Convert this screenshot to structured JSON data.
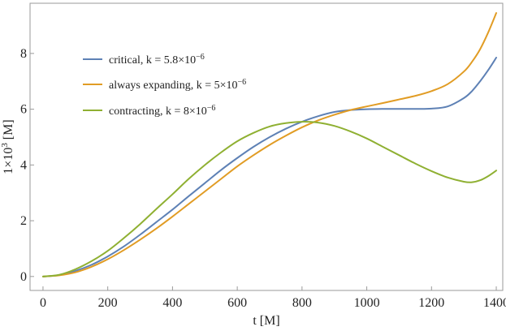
{
  "chart_data": {
    "type": "line",
    "title": "",
    "xlabel": "t [M]",
    "ylabel_parts": [
      "1×10",
      "3",
      " [M]"
    ],
    "xlim": [
      -40,
      1420
    ],
    "ylim": [
      -0.5,
      9.8
    ],
    "xticks": [
      0,
      200,
      400,
      600,
      800,
      1000,
      1200,
      1400
    ],
    "yticks": [
      0,
      2,
      4,
      6,
      8
    ],
    "grid": false,
    "legend_position": "top-left",
    "series": [
      {
        "name_parts": [
          "critical, k = 5.8×10",
          "−6"
        ],
        "color": "#5e81b5",
        "x": [
          0,
          50,
          100,
          150,
          200,
          250,
          300,
          350,
          400,
          450,
          500,
          550,
          600,
          650,
          700,
          750,
          800,
          850,
          900,
          950,
          1000,
          1050,
          1100,
          1150,
          1200,
          1250,
          1300,
          1325,
          1350,
          1375,
          1400
        ],
        "y": [
          0,
          0.05,
          0.2,
          0.42,
          0.72,
          1.08,
          1.5,
          1.95,
          2.4,
          2.88,
          3.35,
          3.82,
          4.25,
          4.65,
          5.0,
          5.3,
          5.55,
          5.75,
          5.9,
          5.97,
          6.0,
          6.01,
          6.01,
          6.01,
          6.02,
          6.1,
          6.4,
          6.65,
          7.0,
          7.4,
          7.85
        ]
      },
      {
        "name_parts": [
          "always expanding, k = 5×10",
          "−6"
        ],
        "color": "#e19c24",
        "x": [
          0,
          50,
          100,
          150,
          200,
          250,
          300,
          350,
          400,
          450,
          500,
          550,
          600,
          650,
          700,
          750,
          800,
          850,
          900,
          950,
          1000,
          1050,
          1100,
          1150,
          1200,
          1250,
          1300,
          1325,
          1350,
          1375,
          1400
        ],
        "y": [
          0,
          0.04,
          0.15,
          0.35,
          0.62,
          0.95,
          1.32,
          1.72,
          2.15,
          2.6,
          3.05,
          3.5,
          3.95,
          4.35,
          4.72,
          5.05,
          5.35,
          5.6,
          5.8,
          5.97,
          6.1,
          6.22,
          6.35,
          6.48,
          6.65,
          6.9,
          7.35,
          7.7,
          8.15,
          8.75,
          9.45
        ]
      },
      {
        "name_parts": [
          "contracting, k = 8×10",
          "−6"
        ],
        "color": "#8fb032",
        "x": [
          0,
          50,
          100,
          150,
          200,
          250,
          300,
          350,
          400,
          450,
          500,
          550,
          600,
          650,
          700,
          750,
          800,
          850,
          900,
          950,
          1000,
          1050,
          1100,
          1150,
          1200,
          1250,
          1300,
          1325,
          1350,
          1375,
          1400
        ],
        "y": [
          0,
          0.06,
          0.26,
          0.55,
          0.92,
          1.38,
          1.88,
          2.42,
          2.95,
          3.5,
          4.0,
          4.45,
          4.85,
          5.15,
          5.38,
          5.5,
          5.55,
          5.52,
          5.4,
          5.2,
          4.95,
          4.65,
          4.35,
          4.05,
          3.78,
          3.55,
          3.4,
          3.38,
          3.45,
          3.6,
          3.8
        ]
      }
    ]
  }
}
